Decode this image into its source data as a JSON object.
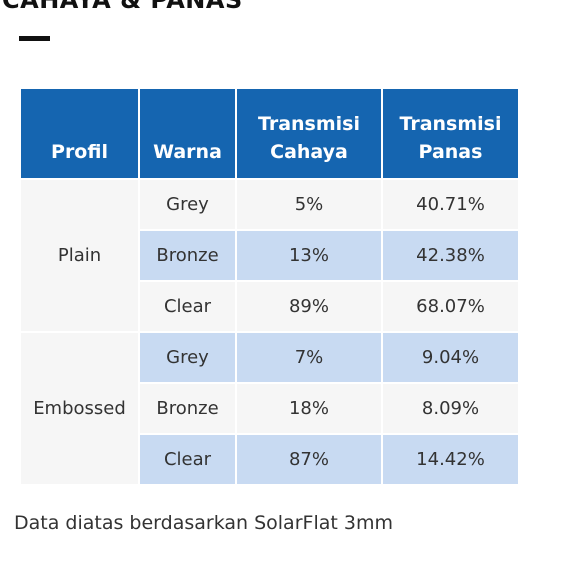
{
  "header": {
    "title": "CAHAYA & PANAS"
  },
  "table": {
    "columns": [
      "Profil",
      "Warna",
      "Transmisi Cahaya",
      "Transmisi Panas"
    ],
    "groups": [
      {
        "profil": "Plain",
        "rows": [
          [
            "Grey",
            "5%",
            "40.71%"
          ],
          [
            "Bronze",
            "13%",
            "42.38%"
          ],
          [
            "Clear",
            "89%",
            "68.07%"
          ]
        ]
      },
      {
        "profil": "Embossed",
        "rows": [
          [
            "Grey",
            "7%",
            "9.04%"
          ],
          [
            "Bronze",
            "18%",
            "8.09%"
          ],
          [
            "Clear",
            "87%",
            "14.42%"
          ]
        ]
      }
    ]
  },
  "footer": {
    "note": "Data diatas berdasarkan SolarFlat 3mm"
  }
}
